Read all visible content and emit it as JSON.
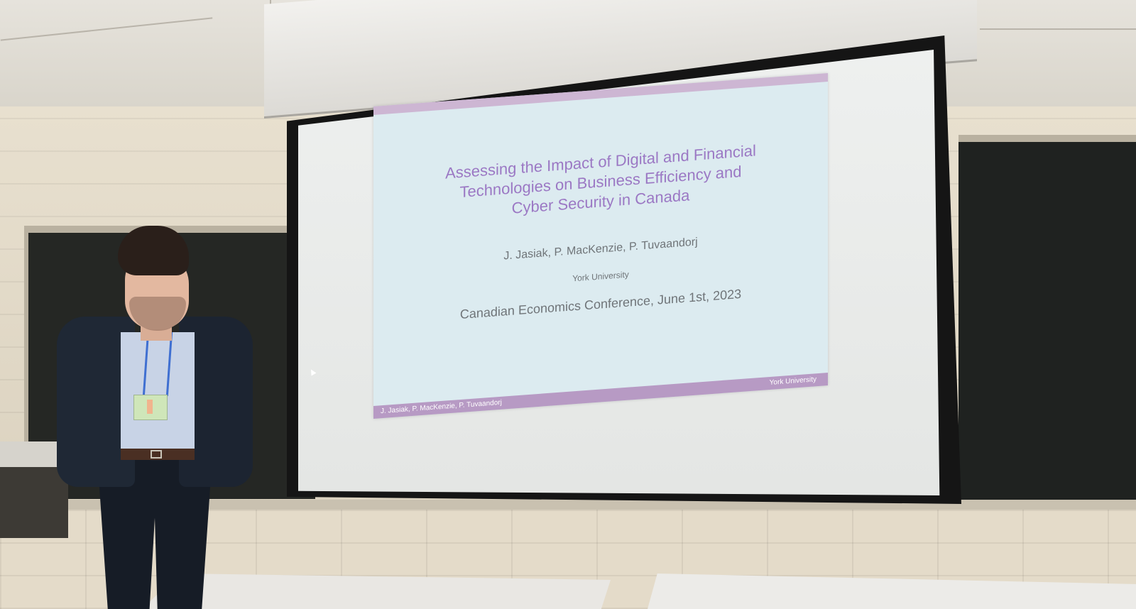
{
  "scene": {
    "description_colors": {
      "slide_background": "#dcebf0",
      "slide_title": "#9b78c4",
      "slide_footer": "#b79ac4",
      "chalkboard": "#252724",
      "wall": "#e4dbc9"
    }
  },
  "slide": {
    "title_lines": [
      "Assessing the Impact of Digital and Financial",
      "Technologies on Business Efficiency and",
      "Cyber Security in Canada"
    ],
    "authors": "J. Jasiak, P. MacKenzie, P. Tuvaandorj",
    "institution": "York University",
    "conference": "Canadian Economics Conference, June 1st, 2023",
    "footer_left": "J. Jasiak, P. MacKenzie, P. Tuvaandorj",
    "footer_right": "York University"
  }
}
